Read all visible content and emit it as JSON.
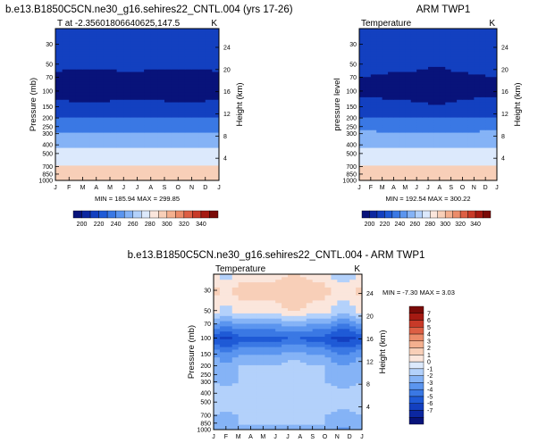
{
  "page": {
    "top_title": "b.e13.B1850C5CN.ne30_g16.sehires22_CNTL.004 (yrs 17-26)",
    "top_right_title": "ARM TWP1",
    "bottom_title": "b.e13.B1850C5CN.ne30_g16.sehires22_CNTL.004 - ARM TWP1"
  },
  "chart_data": [
    {
      "id": "model",
      "type": "heatmap",
      "subtitle_left": "T at -2.35601806640625,147.5",
      "subtitle_right": "K",
      "ylabel": "Pressure (mb)",
      "ylabel_right": "Height (km)",
      "x_ticks": [
        "J",
        "F",
        "M",
        "A",
        "M",
        "J",
        "J",
        "A",
        "S",
        "O",
        "N",
        "D",
        "J"
      ],
      "y_ticks": [
        "30",
        "50",
        "70",
        "100",
        "150",
        "200",
        "250",
        "300",
        "400",
        "500",
        "700",
        "850",
        "1000"
      ],
      "y_ticks_values": [
        30,
        50,
        70,
        100,
        150,
        200,
        250,
        300,
        400,
        500,
        700,
        850,
        1000
      ],
      "y_right_ticks": [
        "24",
        "20",
        "16",
        "12",
        "8",
        "4"
      ],
      "y_right_ticks_values": [
        24,
        20,
        16,
        12,
        8,
        4
      ],
      "ylim_mb": [
        1000,
        20
      ],
      "stats": "MIN = 185.94 MAX = 299.85",
      "color_levels": [
        200,
        220,
        240,
        260,
        280,
        300,
        320,
        340
      ],
      "colorbar_labels": [
        "200",
        "220",
        "240",
        "260",
        "280",
        "300",
        "320",
        "340"
      ],
      "profile_mb": [
        20,
        30,
        50,
        70,
        100,
        150,
        200,
        300,
        400,
        500,
        700,
        850,
        1000
      ],
      "profile_K": [
        218,
        212,
        205,
        196,
        192,
        207,
        220,
        243,
        256,
        266,
        281,
        289,
        299
      ],
      "month_dip_K": [
        0,
        -1,
        -2,
        -2,
        -1,
        0,
        0,
        -1,
        -1,
        -2,
        -2,
        -1,
        0
      ]
    },
    {
      "id": "obs",
      "type": "heatmap",
      "subtitle_left": "Temperature",
      "subtitle_right": "K",
      "ylabel": "pressure level",
      "ylabel_right": "Height (km)",
      "x_ticks": [
        "J",
        "F",
        "M",
        "A",
        "M",
        "J",
        "J",
        "A",
        "S",
        "O",
        "N",
        "D",
        "J"
      ],
      "y_ticks": [
        "30",
        "50",
        "70",
        "100",
        "150",
        "200",
        "250",
        "300",
        "400",
        "500",
        "700",
        "850",
        "1000"
      ],
      "y_ticks_values": [
        30,
        50,
        70,
        100,
        150,
        200,
        250,
        300,
        400,
        500,
        700,
        850,
        1000
      ],
      "y_right_ticks": [
        "24",
        "20",
        "16",
        "12",
        "8",
        "4"
      ],
      "y_right_ticks_values": [
        24,
        20,
        16,
        12,
        8,
        4
      ],
      "ylim_mb": [
        1000,
        20
      ],
      "stats": "MIN = 192.54 MAX = 300.22",
      "color_levels": [
        200,
        220,
        240,
        260,
        280,
        300,
        320,
        340
      ],
      "colorbar_labels": [
        "200",
        "220",
        "240",
        "260",
        "280",
        "300",
        "320",
        "340"
      ],
      "profile_mb": [
        20,
        30,
        50,
        70,
        100,
        150,
        200,
        300,
        400,
        500,
        700,
        850,
        1000
      ],
      "profile_K": [
        220,
        214,
        207,
        199,
        196,
        207,
        221,
        244,
        257,
        267,
        282,
        290,
        300
      ],
      "month_dip_K": [
        0,
        0,
        -1,
        -2,
        -2,
        -3,
        -5,
        -6,
        -3,
        -2,
        -1,
        0,
        0
      ]
    },
    {
      "id": "diff",
      "type": "heatmap",
      "subtitle_left": "Temperature",
      "subtitle_right": "K",
      "ylabel": "Pressure (mb)",
      "ylabel_right": "Height (km)",
      "x_ticks": [
        "J",
        "F",
        "M",
        "A",
        "M",
        "J",
        "J",
        "A",
        "S",
        "O",
        "N",
        "D",
        "J"
      ],
      "y_ticks": [
        "30",
        "50",
        "70",
        "100",
        "150",
        "200",
        "250",
        "300",
        "400",
        "500",
        "700",
        "850",
        "1000"
      ],
      "y_ticks_values": [
        30,
        50,
        70,
        100,
        150,
        200,
        250,
        300,
        400,
        500,
        700,
        850,
        1000
      ],
      "y_right_ticks": [
        "24",
        "20",
        "16",
        "12",
        "8",
        "4"
      ],
      "y_right_ticks_values": [
        24,
        20,
        16,
        12,
        8,
        4
      ],
      "ylim_mb": [
        1000,
        20
      ],
      "stats": "MIN = -7.30 MAX =  3.03",
      "color_levels": [
        -7,
        -6,
        -5,
        -4,
        -3,
        -2,
        -1,
        0,
        1,
        2,
        3,
        4,
        5,
        6,
        7
      ],
      "colorbar_labels": [
        "7",
        "6",
        "5",
        "4",
        "3",
        "2",
        "1",
        "0",
        "-1",
        "-2",
        "-3",
        "-4",
        "-5",
        "-6",
        "-7"
      ],
      "profile_mb": [
        20,
        30,
        50,
        70,
        100,
        150,
        200,
        300,
        400,
        500,
        700,
        850,
        1000
      ],
      "profile_K": [
        0.5,
        1.5,
        0.5,
        -2,
        -4.5,
        -2,
        -1,
        -1,
        -0.5,
        -0.5,
        -1,
        -1,
        -2
      ],
      "month_dip_K": [
        0,
        -1,
        0,
        0,
        0,
        0,
        0.5,
        0.5,
        0,
        0,
        -1,
        -1,
        0
      ]
    }
  ],
  "colors": {
    "temp_scale": [
      "#08137a",
      "#0c27a0",
      "#1340c0",
      "#1f5ad6",
      "#3a78e4",
      "#5b95ef",
      "#85b3f6",
      "#b3d1fb",
      "#dce9fc",
      "#fbe6dc",
      "#f8cfb8",
      "#f4b08f",
      "#ec8c6a",
      "#dd5f44",
      "#c83a28",
      "#a51a12",
      "#7a0b08"
    ],
    "diff_scale": [
      "#08137a",
      "#0c27a0",
      "#1340c0",
      "#1f5ad6",
      "#3a78e4",
      "#5b95ef",
      "#85b3f6",
      "#b3d1fb",
      "#dce9fc",
      "#fbe6dc",
      "#f8cfb8",
      "#f4b08f",
      "#ec8c6a",
      "#dd5f44",
      "#c83a28",
      "#a51a12",
      "#7a0b08"
    ]
  }
}
